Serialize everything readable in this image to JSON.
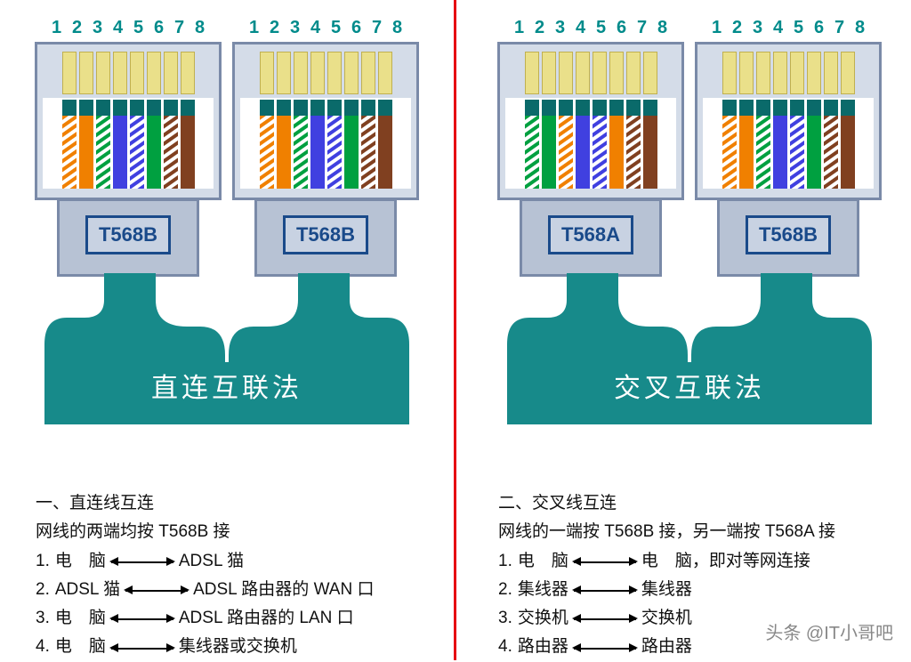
{
  "colors": {
    "divider": "#e60012",
    "pin_text": "#008b8b",
    "connector_border": "#7a8aa8",
    "connector_head_bg": "#d4dce8",
    "connector_body_bg": "#b7c2d4",
    "slot_bg": "#eae08a",
    "label_border": "#1a4a8a",
    "label_text": "#1a4a8a",
    "cable_fill": "#178a8a",
    "cable_title": "#ffffff",
    "text": "#111111",
    "orange": "#f08000",
    "green": "#00a040",
    "blue": "#4040e0",
    "brown": "#804020",
    "dark_top": "#0a6a6a"
  },
  "pin_numbers": [
    "1",
    "2",
    "3",
    "4",
    "5",
    "6",
    "7",
    "8"
  ],
  "standards": {
    "t568b": {
      "label": "T568B",
      "wires": [
        {
          "type": "striped",
          "c": "#f08000"
        },
        {
          "type": "solid",
          "c": "#f08000"
        },
        {
          "type": "striped",
          "c": "#00a040"
        },
        {
          "type": "solid",
          "c": "#4040e0"
        },
        {
          "type": "striped",
          "c": "#4040e0"
        },
        {
          "type": "solid",
          "c": "#00a040"
        },
        {
          "type": "striped",
          "c": "#804020"
        },
        {
          "type": "solid",
          "c": "#804020"
        }
      ]
    },
    "t568a": {
      "label": "T568A",
      "wires": [
        {
          "type": "striped",
          "c": "#00a040"
        },
        {
          "type": "solid",
          "c": "#00a040"
        },
        {
          "type": "striped",
          "c": "#f08000"
        },
        {
          "type": "solid",
          "c": "#4040e0"
        },
        {
          "type": "striped",
          "c": "#4040e0"
        },
        {
          "type": "solid",
          "c": "#f08000"
        },
        {
          "type": "striped",
          "c": "#804020"
        },
        {
          "type": "solid",
          "c": "#804020"
        }
      ]
    }
  },
  "left": {
    "connectors": [
      "t568b",
      "t568b"
    ],
    "cable_title": "直连互联法",
    "heading": "一、直连线互连",
    "sub": "网线的两端均按 T568B 接",
    "rows": [
      {
        "n": "1.",
        "a": "电　脑",
        "arrow": "bi",
        "b": "ADSL 猫"
      },
      {
        "n": "2.",
        "a": "ADSL 猫",
        "arrow": "bi",
        "b": "ADSL 路由器的 WAN 口"
      },
      {
        "n": "3.",
        "a": "电　脑",
        "arrow": "bi",
        "b": "ADSL 路由器的 LAN 口"
      },
      {
        "n": "4.",
        "a": "电　脑",
        "arrow": "bi",
        "b": "集线器或交换机"
      }
    ]
  },
  "right": {
    "connectors": [
      "t568a",
      "t568b"
    ],
    "cable_title": "交叉互联法",
    "heading": "二、交叉线互连",
    "sub": "网线的一端按 T568B 接，另一端按 T568A 接",
    "rows": [
      {
        "n": "1.",
        "a": "电　脑",
        "arrow": "bi",
        "b": "电　脑，即对等网连接"
      },
      {
        "n": "2.",
        "a": "集线器",
        "arrow": "bi",
        "b": "集线器"
      },
      {
        "n": "3.",
        "a": "交换机",
        "arrow": "bi",
        "b": "交换机"
      },
      {
        "n": "4.",
        "a": "路由器",
        "arrow": "bi",
        "b": "路由器"
      }
    ]
  },
  "watermark": "头条 @IT小哥吧"
}
